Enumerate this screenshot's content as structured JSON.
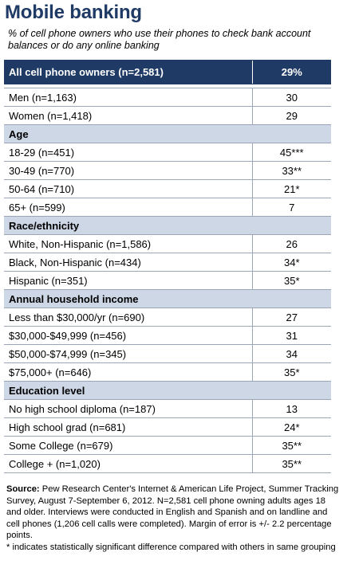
{
  "title": "Mobile banking",
  "subtitle": "% of cell phone owners who use their phones to check bank account balances or do any online banking",
  "chart_data": {
    "type": "table",
    "total": {
      "label": "All cell phone owners (n=2,581)",
      "value": "29%"
    },
    "groups": [
      {
        "header": null,
        "rows": [
          {
            "label": "Men (n=1,163)",
            "value": "30"
          },
          {
            "label": "Women (n=1,418)",
            "value": "29"
          }
        ]
      },
      {
        "header": "Age",
        "rows": [
          {
            "label": "18-29 (n=451)",
            "value": "45***"
          },
          {
            "label": "30-49 (n=770)",
            "value": "33**"
          },
          {
            "label": "50-64 (n=710)",
            "value": "21*"
          },
          {
            "label": "65+ (n=599)",
            "value": "7"
          }
        ]
      },
      {
        "header": "Race/ethnicity",
        "rows": [
          {
            "label": "White, Non-Hispanic (n=1,586)",
            "value": "26"
          },
          {
            "label": "Black, Non-Hispanic (n=434)",
            "value": "34*"
          },
          {
            "label": "Hispanic (n=351)",
            "value": "35*"
          }
        ]
      },
      {
        "header": "Annual household income",
        "rows": [
          {
            "label": "Less than $30,000/yr (n=690)",
            "value": "27"
          },
          {
            "label": "$30,000-$49,999 (n=456)",
            "value": "31"
          },
          {
            "label": "$50,000-$74,999 (n=345)",
            "value": "34"
          },
          {
            "label": "$75,000+ (n=646)",
            "value": "35*"
          }
        ]
      },
      {
        "header": "Education level",
        "rows": [
          {
            "label": "No high school diploma (n=187)",
            "value": "13"
          },
          {
            "label": "High school grad (n=681)",
            "value": "24*"
          },
          {
            "label": "Some College (n=679)",
            "value": "35**"
          },
          {
            "label": "College + (n=1,020)",
            "value": "35**"
          }
        ]
      }
    ]
  },
  "footer": {
    "source_label": "Source:",
    "source_text": " Pew Research Center's Internet & American Life Project, Summer Tracking Survey, August 7-September 6, 2012. N=2,581 cell phone owning adults ages 18 and older. Interviews were conducted in English and Spanish and on landline and cell phones (1,206 cell calls were completed). Margin of error is +/- 2.2 percentage points.",
    "note": "* indicates statistically significant difference compared with others in same grouping"
  },
  "colors": {
    "header_navy": "#1f3a64",
    "section_blue": "#cdd7e6"
  }
}
